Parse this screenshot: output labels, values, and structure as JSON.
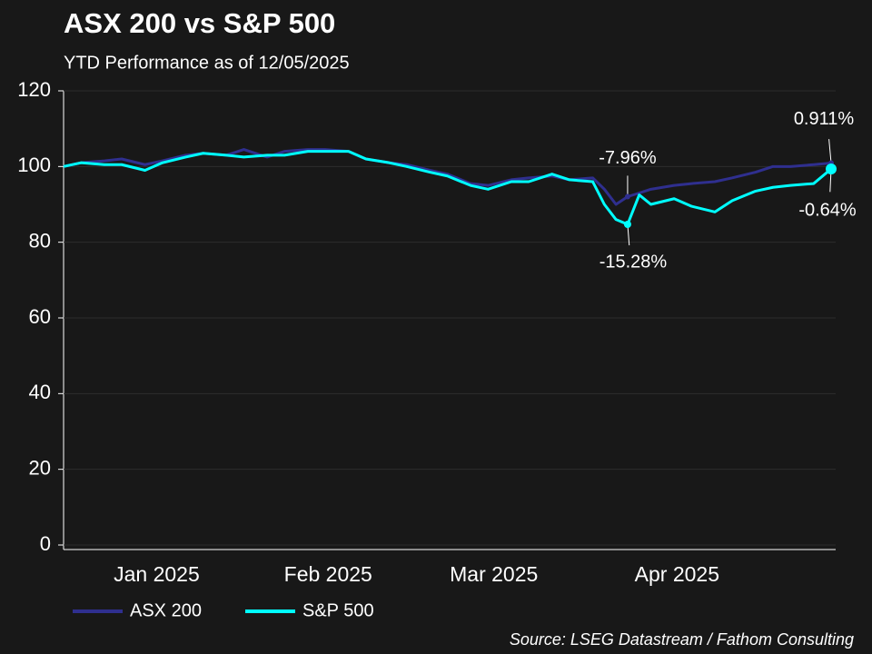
{
  "chart_data": {
    "type": "line",
    "title": "ASX 200 vs S&P 500",
    "subtitle": "YTD Performance as of 12/05/2025",
    "source": "Source: LSEG Datastream / Fathom Consulting",
    "x": [
      0,
      3,
      7,
      10,
      14,
      17,
      21,
      24,
      28,
      31,
      35,
      38,
      42,
      45,
      49,
      52,
      56,
      59,
      63,
      66,
      70,
      73,
      77,
      80,
      84,
      87,
      91,
      93,
      95,
      97,
      99,
      101,
      105,
      108,
      112,
      115,
      119,
      122,
      125,
      129,
      132
    ],
    "xlim": [
      0,
      132
    ],
    "xticks": [
      {
        "value": 16,
        "label": "Jan 2025"
      },
      {
        "value": 45.5,
        "label": "Feb 2025"
      },
      {
        "value": 74,
        "label": "Mar 2025"
      },
      {
        "value": 105.5,
        "label": "Apr 2025"
      }
    ],
    "ylim": [
      0,
      120
    ],
    "yticks": [
      0,
      20,
      40,
      60,
      80,
      100,
      120
    ],
    "grid": true,
    "legend": "bottom-left",
    "series": [
      {
        "name": "ASX 200",
        "color": "#2f2f8f",
        "values": [
          100,
          101,
          101.5,
          102,
          100.5,
          101.5,
          103,
          103.5,
          103,
          104.5,
          102.5,
          104,
          104.5,
          104.5,
          104,
          102,
          101,
          100.5,
          99,
          98,
          95.5,
          95,
          96.5,
          97,
          97.5,
          96.5,
          97,
          94,
          90,
          92.04,
          93,
          94,
          95,
          95.5,
          96,
          97,
          98.5,
          100,
          100,
          100.5,
          100.911
        ]
      },
      {
        "name": "S&P 500",
        "color": "#00ffff",
        "values": [
          100,
          101,
          100.5,
          100.5,
          99,
          101,
          102.5,
          103.5,
          103,
          102.5,
          103,
          103,
          104,
          104,
          104,
          102,
          101,
          100,
          98.5,
          97.5,
          95,
          94,
          96,
          96,
          98,
          96.5,
          96,
          90,
          86,
          84.72,
          92.5,
          90,
          91.5,
          89.5,
          88,
          91,
          93.5,
          94.5,
          95,
          95.5,
          99.36
        ]
      }
    ],
    "annotations": [
      {
        "text": "-7.96%"
      },
      {
        "text": "-15.28%"
      },
      {
        "text": "0.911%"
      },
      {
        "text": "-0.64%"
      }
    ]
  }
}
